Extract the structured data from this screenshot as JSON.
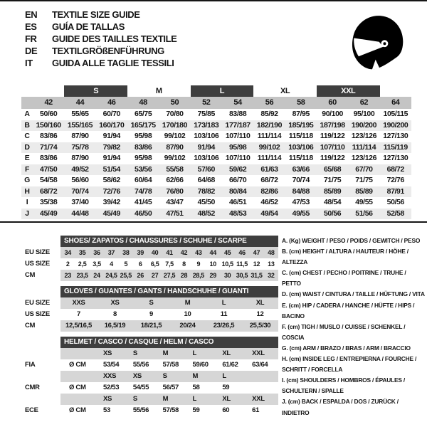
{
  "page": {
    "accent_dark": "#3e3e3e",
    "band_gray": "#c4c4c4",
    "stripe_gray": "#ebebeb",
    "section_gray": "#d6d6d6",
    "text_color": "#161616"
  },
  "header": {
    "languages": [
      {
        "code": "EN",
        "title": "TEXTILE SIZE GUIDE"
      },
      {
        "code": "ES",
        "title": "GUÍA DE TALLAS"
      },
      {
        "code": "FR",
        "title": "GUIDE DES TAILLES TEXTILE"
      },
      {
        "code": "DE",
        "title": "TEXTILGRÖßENFÜHRUNG"
      },
      {
        "code": "IT",
        "title": "GUIDA ALLE TAGLIE TESSILI"
      }
    ],
    "icon": "racing-helmet"
  },
  "main_table": {
    "groups": [
      {
        "label": "S",
        "span": 2,
        "dark": true
      },
      {
        "label": "M",
        "span": 2,
        "dark": false
      },
      {
        "label": "L",
        "span": 2,
        "dark": true
      },
      {
        "label": "XL",
        "span": 2,
        "dark": false
      },
      {
        "label": "XXL",
        "span": 2,
        "dark": true
      }
    ],
    "sizes": [
      "42",
      "44",
      "46",
      "48",
      "50",
      "52",
      "54",
      "56",
      "58",
      "60",
      "62",
      "64"
    ],
    "rows": [
      {
        "label": "A",
        "values": [
          "50/60",
          "55/65",
          "60/70",
          "65/75",
          "70/80",
          "75/85",
          "83/88",
          "85/92",
          "87/95",
          "90/100",
          "95/100",
          "105/115"
        ]
      },
      {
        "label": "B",
        "values": [
          "150/160",
          "155/165",
          "160/170",
          "165/175",
          "170/180",
          "173/183",
          "177/187",
          "182/190",
          "185/195",
          "187/198",
          "190/200",
          "190/200"
        ]
      },
      {
        "label": "C",
        "values": [
          "83/86",
          "87/90",
          "91/94",
          "95/98",
          "99/102",
          "103/106",
          "107/110",
          "111/114",
          "115/118",
          "119/122",
          "123/126",
          "127/130"
        ]
      },
      {
        "label": "D",
        "values": [
          "71/74",
          "75/78",
          "79/82",
          "83/86",
          "87/90",
          "91/94",
          "95/98",
          "99/102",
          "103/106",
          "107/110",
          "111/114",
          "115/119"
        ]
      },
      {
        "label": "E",
        "values": [
          "83/86",
          "87/90",
          "91/94",
          "95/98",
          "99/102",
          "103/106",
          "107/110",
          "111/114",
          "115/118",
          "119/122",
          "123/126",
          "127/130"
        ]
      },
      {
        "label": "F",
        "values": [
          "47/50",
          "49/52",
          "51/54",
          "53/56",
          "55/58",
          "57/60",
          "59/62",
          "61/63",
          "63/66",
          "65/68",
          "67/70",
          "68/72"
        ]
      },
      {
        "label": "G",
        "values": [
          "54/58",
          "56/60",
          "58/62",
          "60/64",
          "62/66",
          "64/68",
          "66/70",
          "68/72",
          "70/74",
          "71/75",
          "71/75",
          "72/76"
        ]
      },
      {
        "label": "H",
        "values": [
          "68/72",
          "70/74",
          "72/76",
          "74/78",
          "76/80",
          "78/82",
          "80/84",
          "82/86",
          "84/88",
          "85/89",
          "85/89",
          "87/91"
        ]
      },
      {
        "label": "I",
        "values": [
          "35/38",
          "37/40",
          "39/42",
          "41/45",
          "43/47",
          "45/50",
          "46/51",
          "46/52",
          "47/53",
          "48/54",
          "49/55",
          "50/56"
        ]
      },
      {
        "label": "J",
        "values": [
          "45/49",
          "44/48",
          "45/49",
          "46/50",
          "47/51",
          "48/52",
          "48/53",
          "49/54",
          "49/55",
          "50/56",
          "51/56",
          "52/58"
        ]
      }
    ]
  },
  "shoes": {
    "title": "SHOES/ ZAPATOS / CHAUSSURES / SCHUHE / SCARPE",
    "has_prefix": false,
    "rows": [
      {
        "label": "EU SIZE",
        "gray": true,
        "values": [
          "34",
          "35",
          "36",
          "37",
          "38",
          "39",
          "40",
          "41",
          "42",
          "43",
          "44",
          "45",
          "46",
          "47",
          "48"
        ]
      },
      {
        "label": "US SIZE",
        "gray": false,
        "values": [
          "2",
          "2,5",
          "3,5",
          "4",
          "5",
          "6",
          "6,5",
          "7,5",
          "8",
          "9",
          "10",
          "10,5",
          "11,5",
          "12",
          "13"
        ]
      },
      {
        "label": "CM",
        "gray": true,
        "values": [
          "23",
          "23,5",
          "24",
          "24,5",
          "25,5",
          "26",
          "27",
          "27,5",
          "28",
          "28,5",
          "29",
          "30",
          "30,5",
          "31,5",
          "32"
        ]
      }
    ]
  },
  "gloves": {
    "title": "GLOVES / GUANTES / GANTS / HANDSCHUHE / GUANTI",
    "has_prefix": false,
    "rows": [
      {
        "label": "EU SIZE",
        "gray": true,
        "values": [
          "XXS",
          "XS",
          "S",
          "M",
          "L",
          "XL"
        ]
      },
      {
        "label": "US SIZE",
        "gray": false,
        "values": [
          "7",
          "8",
          "9",
          "10",
          "11",
          "12"
        ]
      },
      {
        "label": "CM",
        "gray": true,
        "values": [
          "12,5/16,5",
          "16,5/19",
          "18/21,5",
          "20/24",
          "23/26,5",
          "25,5/30"
        ]
      }
    ]
  },
  "helmet": {
    "title": "HELMET / CASCO / CASQUE / HELM / CASCO",
    "has_prefix": true,
    "rows": [
      {
        "label": "",
        "prefix": "",
        "gray": true,
        "values": [
          "XS",
          "S",
          "M",
          "L",
          "XL",
          "XXL"
        ]
      },
      {
        "label": "FIA",
        "prefix": "Ø CM",
        "gray": false,
        "values": [
          "53/54",
          "55/56",
          "57/58",
          "59/60",
          "61/62",
          "63/64"
        ]
      },
      {
        "label": "",
        "prefix": "",
        "gray": true,
        "values": [
          "XXS",
          "XS",
          "S",
          "M",
          "L",
          ""
        ]
      },
      {
        "label": "CMR",
        "prefix": "Ø CM",
        "gray": false,
        "values": [
          "52/53",
          "54/55",
          "56/57",
          "58",
          "59",
          ""
        ]
      },
      {
        "label": "",
        "prefix": "",
        "gray": true,
        "values": [
          "XS",
          "S",
          "M",
          "L",
          "XL",
          "XXL"
        ]
      },
      {
        "label": "ECE",
        "prefix": "Ø CM",
        "gray": false,
        "values": [
          "53",
          "55/56",
          "57/58",
          "59",
          "60",
          "61"
        ]
      }
    ]
  },
  "legend": {
    "items": [
      "A. (Kg) WEIGHT / PESO / POIDS / GEWITCH / PESO",
      "B. (cm) HEIGHT / ALTURA / HAUTEUR / HÖHE / ALTEZZA",
      "C. (cm) CHEST / PECHO / POITRINE / TRUHE / PETTO",
      "D. (cm) WAIST / CINTURA / TAILLE / HÜFTUNG / VITA",
      "E. (cm) HIP / CADERA / HANCHE / HÜFTE / HIPS / BACINO",
      "F. (cm) TIGH / MUSLO / CUISSE / SCHENKEL / COSCIA",
      "G. (cm) ARM / BRAZO / BRAS / ARM / BRACCIO",
      "H. (cm) INSIDE LEG / ENTREPIERNA / FOURCHE / SCHRITT / FORCELLA",
      "I. (cm) SHOULDERS / HOMBROS / ÉPAULES / SCHULTERN / SPALLE",
      "J. (cm) BACK / ESPALDA / DOS / ZURÜCK / INDIETRO"
    ]
  }
}
